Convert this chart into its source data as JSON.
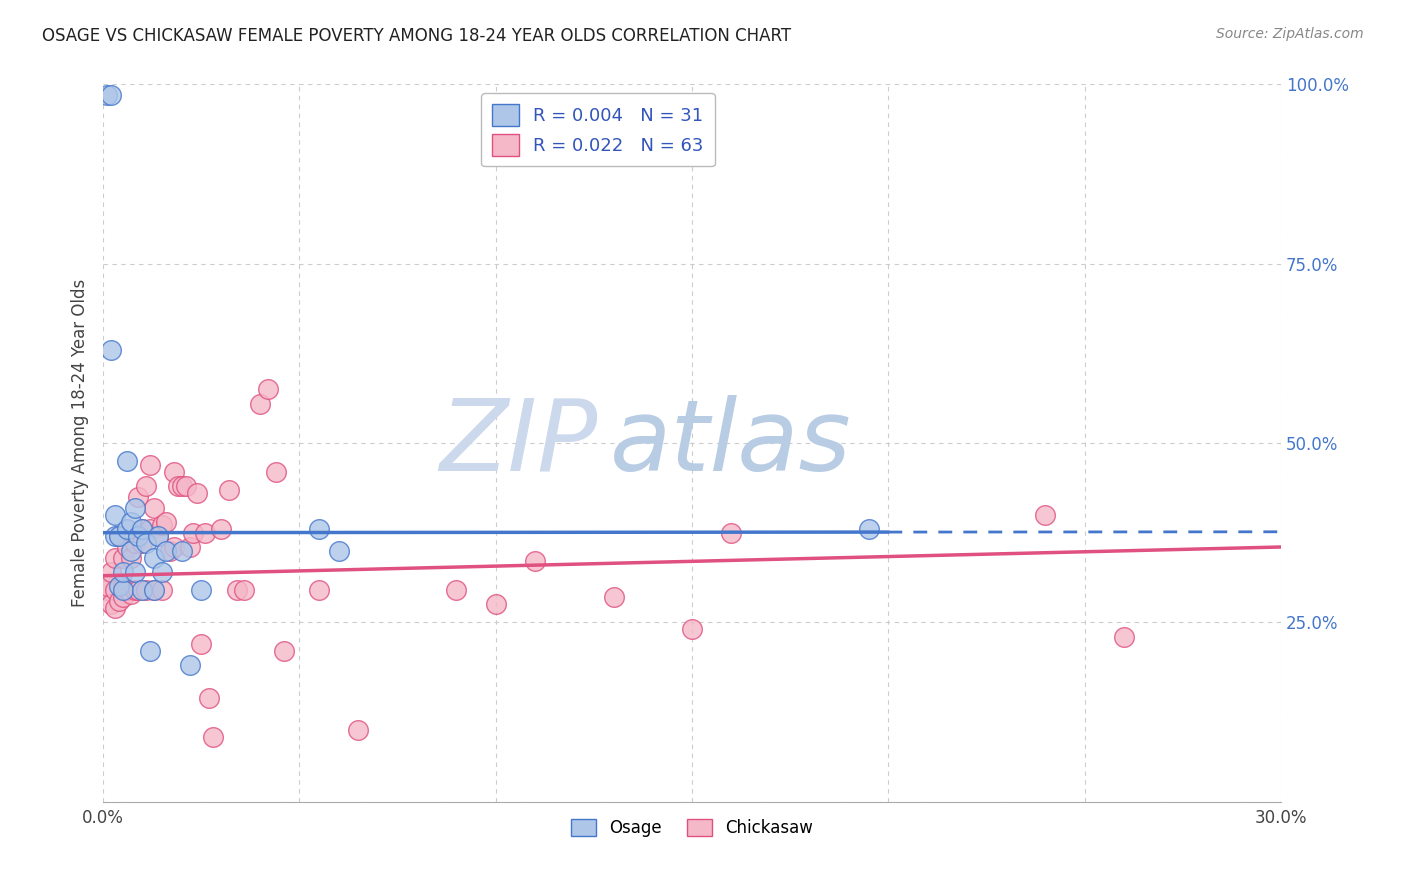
{
  "title": "OSAGE VS CHICKASAW FEMALE POVERTY AMONG 18-24 YEAR OLDS CORRELATION CHART",
  "source": "Source: ZipAtlas.com",
  "ylabel": "Female Poverty Among 18-24 Year Olds",
  "xlim": [
    0.0,
    0.3
  ],
  "ylim": [
    0.0,
    1.0
  ],
  "xticks": [
    0.0,
    0.05,
    0.1,
    0.15,
    0.2,
    0.25,
    0.3
  ],
  "xticklabels": [
    "0.0%",
    "",
    "",
    "",
    "",
    "",
    "30.0%"
  ],
  "yticks_right": [
    0.0,
    0.25,
    0.5,
    0.75,
    1.0
  ],
  "ytick_right_labels": [
    "",
    "25.0%",
    "50.0%",
    "75.0%",
    "100.0%"
  ],
  "legend_r1": "R = 0.004",
  "legend_n1": "N = 31",
  "legend_r2": "R = 0.022",
  "legend_n2": "N = 63",
  "label_osage": "Osage",
  "label_chickasaw": "Chickasaw",
  "color_osage": "#aec6e8",
  "color_chickasaw": "#f4b8c8",
  "color_line_osage": "#4477cc",
  "color_line_chickasaw": "#e05080",
  "color_legend_text": "#3355bb",
  "watermark_zip": "ZIP",
  "watermark_atlas": "atlas",
  "watermark_color_zip": "#c8d8ee",
  "watermark_color_atlas": "#b8c8e0",
  "background_color": "#ffffff",
  "grid_color": "#cccccc",
  "osage_x": [
    0.001,
    0.002,
    0.002,
    0.003,
    0.003,
    0.004,
    0.004,
    0.005,
    0.005,
    0.006,
    0.006,
    0.007,
    0.007,
    0.008,
    0.008,
    0.009,
    0.01,
    0.01,
    0.011,
    0.012,
    0.013,
    0.013,
    0.014,
    0.015,
    0.016,
    0.02,
    0.022,
    0.025,
    0.055,
    0.06,
    0.195
  ],
  "osage_y": [
    0.985,
    0.985,
    0.63,
    0.4,
    0.37,
    0.37,
    0.3,
    0.295,
    0.32,
    0.475,
    0.38,
    0.39,
    0.35,
    0.32,
    0.41,
    0.37,
    0.295,
    0.38,
    0.36,
    0.21,
    0.295,
    0.34,
    0.37,
    0.32,
    0.35,
    0.35,
    0.19,
    0.295,
    0.38,
    0.35,
    0.38
  ],
  "chickasaw_x": [
    0.001,
    0.001,
    0.002,
    0.002,
    0.003,
    0.003,
    0.003,
    0.004,
    0.004,
    0.005,
    0.005,
    0.005,
    0.006,
    0.006,
    0.007,
    0.007,
    0.008,
    0.008,
    0.009,
    0.009,
    0.01,
    0.01,
    0.011,
    0.011,
    0.012,
    0.012,
    0.013,
    0.013,
    0.014,
    0.015,
    0.015,
    0.016,
    0.017,
    0.018,
    0.018,
    0.019,
    0.02,
    0.021,
    0.022,
    0.023,
    0.024,
    0.025,
    0.026,
    0.027,
    0.028,
    0.03,
    0.032,
    0.034,
    0.036,
    0.04,
    0.042,
    0.044,
    0.046,
    0.055,
    0.065,
    0.09,
    0.1,
    0.11,
    0.13,
    0.15,
    0.16,
    0.24,
    0.26
  ],
  "chickasaw_y": [
    0.295,
    0.3,
    0.275,
    0.32,
    0.27,
    0.295,
    0.34,
    0.28,
    0.37,
    0.285,
    0.3,
    0.34,
    0.295,
    0.355,
    0.29,
    0.34,
    0.295,
    0.36,
    0.295,
    0.425,
    0.36,
    0.38,
    0.295,
    0.44,
    0.38,
    0.47,
    0.295,
    0.41,
    0.37,
    0.295,
    0.385,
    0.39,
    0.35,
    0.355,
    0.46,
    0.44,
    0.44,
    0.44,
    0.355,
    0.375,
    0.43,
    0.22,
    0.375,
    0.145,
    0.09,
    0.38,
    0.435,
    0.295,
    0.295,
    0.555,
    0.575,
    0.46,
    0.21,
    0.295,
    0.1,
    0.295,
    0.275,
    0.335,
    0.285,
    0.24,
    0.375,
    0.4,
    0.23
  ]
}
